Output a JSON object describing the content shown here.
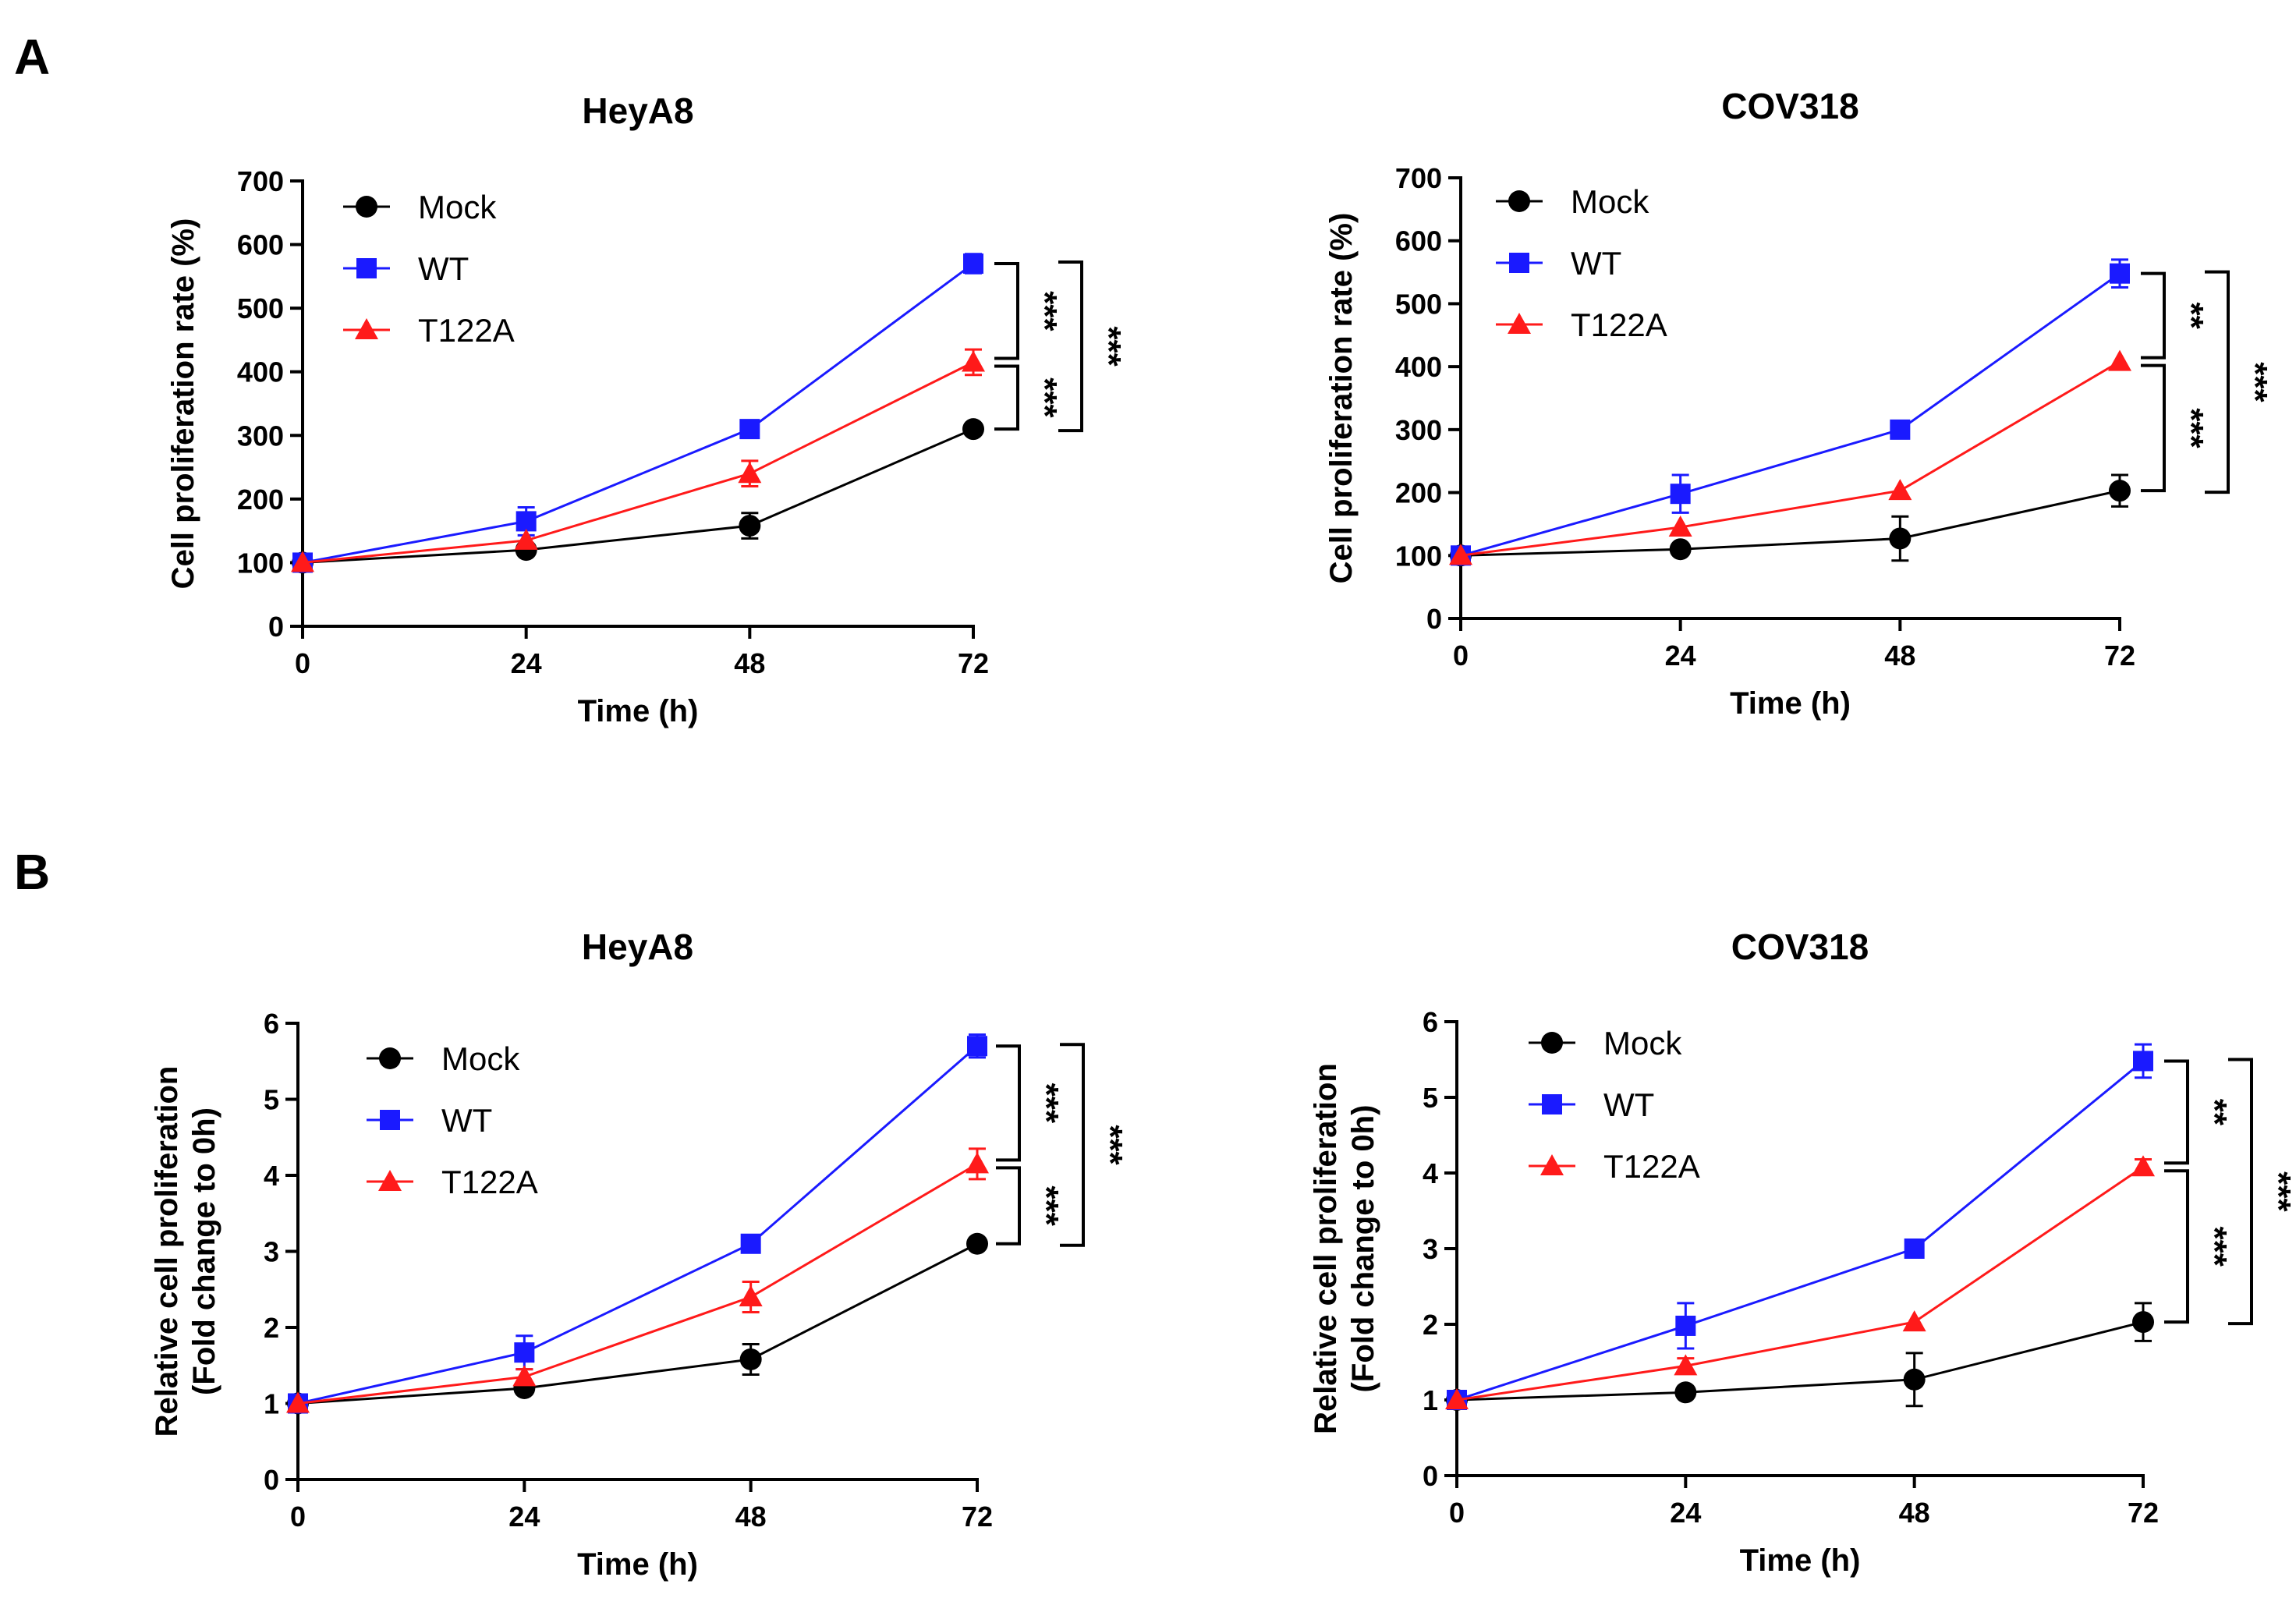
{
  "panels": [
    {
      "letter": "A"
    },
    {
      "letter": "B"
    }
  ],
  "chart_data": [
    {
      "panel": "A",
      "type": "line",
      "title": "HeyA8",
      "xlabel": "Time (h)",
      "ylabel": "Cell proliferation rate (%)",
      "ylabel_lines": [
        "Cell proliferation rate (%)"
      ],
      "x": [
        0,
        24,
        48,
        72
      ],
      "xticks": [
        0,
        24,
        48,
        72
      ],
      "ylim": [
        0,
        700
      ],
      "yticks": [
        0,
        100,
        200,
        300,
        400,
        500,
        600,
        700
      ],
      "ytick_labels": [
        "0",
        "100",
        "200",
        "300",
        "400",
        "500",
        "600",
        "700"
      ],
      "legend_position": "top-left",
      "series": [
        {
          "name": "Mock",
          "color": "#000000",
          "marker": "circle",
          "values": [
            100,
            120,
            158,
            310
          ],
          "errors": [
            0,
            5,
            20,
            0
          ]
        },
        {
          "name": "WT",
          "color": "#1a1aff",
          "marker": "square",
          "values": [
            100,
            165,
            310,
            570
          ],
          "errors": [
            0,
            22,
            0,
            15
          ]
        },
        {
          "name": "T122A",
          "color": "#ff1a1a",
          "marker": "triangle",
          "values": [
            100,
            135,
            240,
            415
          ],
          "errors": [
            0,
            0,
            20,
            20
          ]
        }
      ],
      "significance": [
        {
          "between": [
            "WT",
            "T122A"
          ],
          "label": "***",
          "level": 1
        },
        {
          "between": [
            "T122A",
            "Mock"
          ],
          "label": "***",
          "level": 1
        },
        {
          "between": [
            "WT",
            "Mock"
          ],
          "label": "***",
          "level": 2
        }
      ]
    },
    {
      "panel": "A",
      "type": "line",
      "title": "COV318",
      "xlabel": "Time (h)",
      "ylabel": "Cell proliferation rate (%)",
      "ylabel_lines": [
        "Cell proliferation rate (%)"
      ],
      "x": [
        0,
        24,
        48,
        72
      ],
      "xticks": [
        0,
        24,
        48,
        72
      ],
      "ylim": [
        0,
        700
      ],
      "yticks": [
        0,
        100,
        200,
        300,
        400,
        500,
        600,
        700
      ],
      "ytick_labels": [
        "0",
        "100",
        "200",
        "300",
        "400",
        "500",
        "600",
        "700"
      ],
      "legend_position": "top-left",
      "series": [
        {
          "name": "Mock",
          "color": "#000000",
          "marker": "circle",
          "values": [
            100,
            110,
            127,
            203
          ],
          "errors": [
            0,
            0,
            35,
            25
          ]
        },
        {
          "name": "WT",
          "color": "#1a1aff",
          "marker": "square",
          "values": [
            100,
            198,
            300,
            548
          ],
          "errors": [
            0,
            30,
            0,
            22
          ]
        },
        {
          "name": "T122A",
          "color": "#ff1a1a",
          "marker": "triangle",
          "values": [
            100,
            145,
            203,
            408
          ],
          "errors": [
            0,
            0,
            0,
            0
          ]
        }
      ],
      "significance": [
        {
          "between": [
            "WT",
            "T122A"
          ],
          "label": "**",
          "level": 1
        },
        {
          "between": [
            "T122A",
            "Mock"
          ],
          "label": "***",
          "level": 1
        },
        {
          "between": [
            "WT",
            "Mock"
          ],
          "label": "***",
          "level": 2
        }
      ]
    },
    {
      "panel": "B",
      "type": "line",
      "title": "HeyA8",
      "xlabel": "Time (h)",
      "ylabel": "Relative cell proliferation (Fold change to 0h)",
      "ylabel_lines": [
        "Relative cell proliferation",
        "(Fold change to 0h)"
      ],
      "x": [
        0,
        24,
        48,
        72
      ],
      "xticks": [
        0,
        24,
        48,
        72
      ],
      "ylim": [
        0,
        6
      ],
      "yticks": [
        0,
        1,
        2,
        3,
        4,
        5,
        6
      ],
      "ytick_labels": [
        "0",
        "1",
        "2",
        "3",
        "4",
        "5",
        "6"
      ],
      "legend_position": "top-left",
      "series": [
        {
          "name": "Mock",
          "color": "#000000",
          "marker": "circle",
          "values": [
            1.0,
            1.2,
            1.58,
            3.1
          ],
          "errors": [
            0,
            0.05,
            0.2,
            0
          ]
        },
        {
          "name": "WT",
          "color": "#1a1aff",
          "marker": "square",
          "values": [
            1.0,
            1.67,
            3.1,
            5.7
          ],
          "errors": [
            0,
            0.22,
            0,
            0.15
          ]
        },
        {
          "name": "T122A",
          "color": "#ff1a1a",
          "marker": "triangle",
          "values": [
            1.0,
            1.35,
            2.4,
            4.15
          ],
          "errors": [
            0,
            0.1,
            0.2,
            0.2
          ]
        }
      ],
      "significance": [
        {
          "between": [
            "WT",
            "T122A"
          ],
          "label": "***",
          "level": 1
        },
        {
          "between": [
            "T122A",
            "Mock"
          ],
          "label": "***",
          "level": 1
        },
        {
          "between": [
            "WT",
            "Mock"
          ],
          "label": "***",
          "level": 2
        }
      ]
    },
    {
      "panel": "B",
      "type": "line",
      "title": "COV318",
      "xlabel": "Time (h)",
      "ylabel": "Relative cell proliferation (Fold change to 0h)",
      "ylabel_lines": [
        "Relative cell proliferation",
        "(Fold change to 0h)"
      ],
      "x": [
        0,
        24,
        48,
        72
      ],
      "xticks": [
        0,
        24,
        48,
        72
      ],
      "ylim": [
        0,
        6
      ],
      "yticks": [
        0,
        1,
        2,
        3,
        4,
        5,
        6
      ],
      "ytick_labels": [
        "0",
        "1",
        "2",
        "3",
        "4",
        "5",
        "6"
      ],
      "legend_position": "top-left",
      "series": [
        {
          "name": "Mock",
          "color": "#000000",
          "marker": "circle",
          "values": [
            1.0,
            1.1,
            1.27,
            2.03
          ],
          "errors": [
            0,
            0,
            0.35,
            0.25
          ]
        },
        {
          "name": "WT",
          "color": "#1a1aff",
          "marker": "square",
          "values": [
            1.0,
            1.98,
            3.0,
            5.48
          ],
          "errors": [
            0,
            0.3,
            0,
            0.22
          ]
        },
        {
          "name": "T122A",
          "color": "#ff1a1a",
          "marker": "triangle",
          "values": [
            1.0,
            1.45,
            2.03,
            4.08
          ],
          "errors": [
            0,
            0.1,
            0,
            0.1
          ]
        }
      ],
      "significance": [
        {
          "between": [
            "WT",
            "T122A"
          ],
          "label": "**",
          "level": 1
        },
        {
          "between": [
            "T122A",
            "Mock"
          ],
          "label": "***",
          "level": 1
        },
        {
          "between": [
            "WT",
            "Mock"
          ],
          "label": "***",
          "level": 2
        }
      ]
    }
  ]
}
